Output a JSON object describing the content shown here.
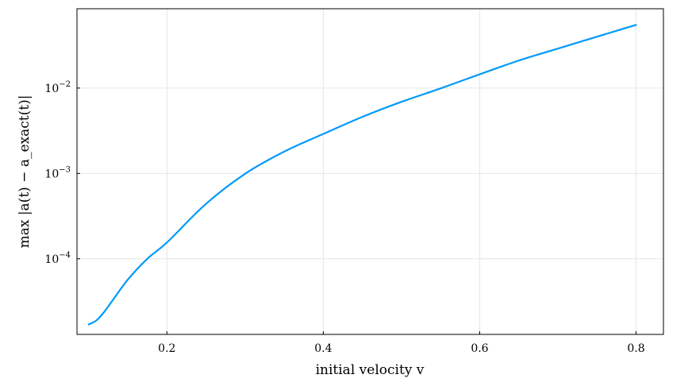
{
  "chart_data": {
    "type": "line",
    "title": "",
    "xlabel": "initial velocity v",
    "ylabel": "max |a(t) − a_exact(t)|",
    "xlim": [
      0.085,
      0.835
    ],
    "ylim": [
      1.3e-05,
      0.085
    ],
    "y_scale": "log",
    "grid": true,
    "legend": "none",
    "x_ticks": [
      0.2,
      0.4,
      0.6,
      0.8
    ],
    "x_tick_labels": [
      "0.2",
      "0.4",
      "0.6",
      "0.8"
    ],
    "y_ticks": [
      0.0001,
      0.001,
      0.01
    ],
    "y_tick_labels": [
      {
        "base": "10",
        "exp": "−4"
      },
      {
        "base": "10",
        "exp": "−3"
      },
      {
        "base": "10",
        "exp": "−2"
      }
    ],
    "series": [
      {
        "color": "#009af9",
        "x": [
          0.1,
          0.11,
          0.12,
          0.13,
          0.15,
          0.175,
          0.2,
          0.25,
          0.3,
          0.35,
          0.4,
          0.45,
          0.5,
          0.55,
          0.6,
          0.65,
          0.7,
          0.75,
          0.8
        ],
        "y": [
          1.7e-05,
          1.9e-05,
          2.4e-05,
          3.2e-05,
          5.7e-05,
          0.0001,
          0.000155,
          0.00044,
          0.00099,
          0.0018,
          0.0029,
          0.0046,
          0.0069,
          0.0099,
          0.0145,
          0.021,
          0.029,
          0.04,
          0.055
        ]
      }
    ]
  }
}
